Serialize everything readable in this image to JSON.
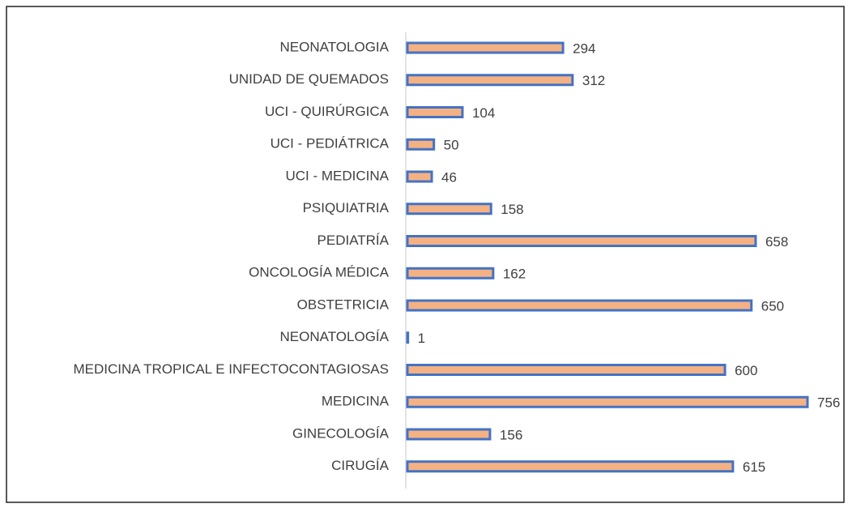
{
  "chart_data": {
    "type": "bar",
    "orientation": "horizontal",
    "categories": [
      "NEONATOLOGIA",
      "UNIDAD DE QUEMADOS",
      "UCI - QUIRÚRGICA",
      "UCI - PEDIÁTRICA",
      "UCI - MEDICINA",
      "PSIQUIATRIA",
      "PEDIATRÍA",
      "ONCOLOGÍA MÉDICA",
      "OBSTETRICIA",
      "NEONATOLOGÍA",
      "MEDICINA TROPICAL E INFECTOCONTAGIOSAS",
      "MEDICINA",
      "GINECOLOGÍA",
      "CIRUGÍA"
    ],
    "values": [
      294,
      312,
      104,
      50,
      46,
      158,
      658,
      162,
      650,
      1,
      600,
      756,
      156,
      615
    ],
    "color": "#f4b183",
    "edge_color": "#4472c4"
  }
}
